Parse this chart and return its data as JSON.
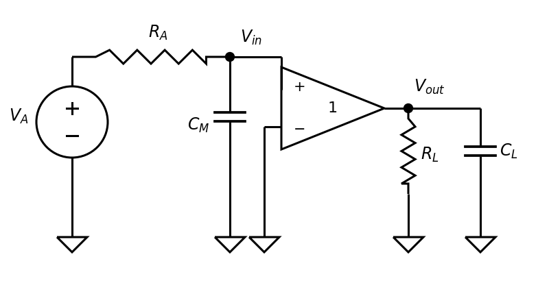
{
  "bg_color": "#ffffff",
  "line_color": "#000000",
  "line_width": 2.2,
  "figsize": [
    8.0,
    4.13
  ],
  "dpi": 100,
  "xlim": [
    0,
    8
  ],
  "ylim": [
    0,
    4.13
  ]
}
